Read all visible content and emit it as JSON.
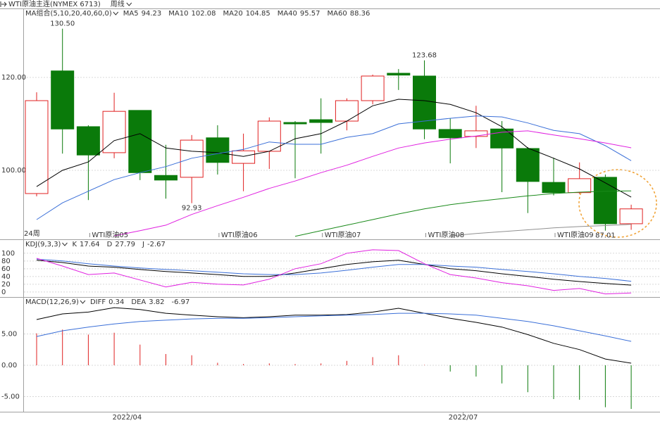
{
  "chart_data": [
    {
      "type": "candlestick",
      "title": "WTI原油主连(NYMEX 6713)",
      "period": "周线",
      "indicator": "MA组合(5,10,20,40,60,0)",
      "panel_note": "24周",
      "categories": [
        null,
        null,
        null,
        null,
        null,
        null,
        null,
        null,
        null,
        null,
        null,
        null,
        null,
        null,
        null,
        null,
        null,
        null,
        null,
        null,
        null,
        null,
        null,
        null
      ],
      "open": [
        95.0,
        121.4,
        109.4,
        103.8,
        112.9,
        98.9,
        98.5,
        107.0,
        101.5,
        104.1,
        110.3,
        110.9,
        110.6,
        115.0,
        120.9,
        120.3,
        108.8,
        107.3,
        108.9,
        104.7,
        97.4,
        95.2,
        98.5,
        88.5
      ],
      "high": [
        116.8,
        130.5,
        109.7,
        116.7,
        112.9,
        105.5,
        107.6,
        109.7,
        107.9,
        111.4,
        110.6,
        115.5,
        115.5,
        120.6,
        121.8,
        123.68,
        111.2,
        113.9,
        110.6,
        105.0,
        102.7,
        101.7,
        99.1,
        92.6
      ],
      "low": [
        94.4,
        103.6,
        93.6,
        102.6,
        97.9,
        93.9,
        92.93,
        99.1,
        95.5,
        100.3,
        98.3,
        103.6,
        108.6,
        114.2,
        117.3,
        106.7,
        101.5,
        104.8,
        95.3,
        90.8,
        94.6,
        94.9,
        87.01,
        87.2
      ],
      "close": [
        115.0,
        108.9,
        103.3,
        112.7,
        99.5,
        97.9,
        106.5,
        101.7,
        104.2,
        110.6,
        110.0,
        110.3,
        115.0,
        120.3,
        120.5,
        108.9,
        107.0,
        108.5,
        104.8,
        97.6,
        95.2,
        98.2,
        88.5,
        91.7
      ],
      "up_color": "#e02020",
      "down_color": "#0a7a0a",
      "series": [
        {
          "name": "MA5",
          "color": "#000000",
          "values": [
            96.5,
            100,
            101.8,
            106.4,
            107.9,
            104.8,
            104.1,
            103.8,
            103.0,
            104.1,
            106.8,
            107.9,
            110.6,
            113.9,
            115.3,
            115.0,
            114.2,
            112.4,
            109.4,
            104.8,
            102.6,
            100.3,
            97.3,
            94.23
          ]
        },
        {
          "name": "MA10",
          "color": "#3a6fd8",
          "values": [
            89.4,
            93.0,
            95.5,
            98.0,
            99.5,
            100.8,
            102.6,
            103.6,
            104.5,
            106.1,
            105.6,
            105.6,
            107.1,
            107.9,
            110.0,
            110.6,
            111.2,
            111.7,
            111.5,
            110.2,
            108.6,
            107.9,
            105.3,
            102.08
          ]
        },
        {
          "name": "MA20",
          "color": "#e020e0",
          "values": [
            null,
            null,
            null,
            85.9,
            87.0,
            88.2,
            90.5,
            92.4,
            94.2,
            96.1,
            97.7,
            99.5,
            101.1,
            103.0,
            104.8,
            105.9,
            106.7,
            107.4,
            108.2,
            108.5,
            107.6,
            106.8,
            105.9,
            104.85
          ]
        },
        {
          "name": "MA40",
          "color": "#1a8a1a",
          "values": [
            null,
            null,
            null,
            null,
            null,
            null,
            null,
            null,
            null,
            null,
            85.8,
            87.0,
            88.2,
            89.4,
            90.6,
            91.7,
            92.6,
            93.3,
            93.9,
            94.5,
            95.0,
            95.3,
            95.5,
            95.57
          ]
        },
        {
          "name": "MA60",
          "color": "#909090",
          "values": [
            null,
            null,
            null,
            null,
            null,
            null,
            null,
            null,
            null,
            null,
            null,
            null,
            null,
            null,
            null,
            null,
            85.9,
            86.4,
            86.8,
            87.2,
            87.6,
            87.9,
            88.1,
            88.36
          ]
        }
      ],
      "high_labels": [
        {
          "index": 1,
          "text": "130.50"
        },
        {
          "index": 15,
          "text": "123.68"
        }
      ],
      "low_labels": [
        {
          "index": 6,
          "text": "92.93"
        },
        {
          "index": 22,
          "text": "87.01"
        }
      ],
      "contract_labels": [
        {
          "index": 2,
          "text": "WTI原油05"
        },
        {
          "index": 7,
          "text": "WTI原油06"
        },
        {
          "index": 11,
          "text": "WTI原油07"
        },
        {
          "index": 15,
          "text": "WTI原油08"
        },
        {
          "index": 20,
          "text": "WTI原油09"
        }
      ],
      "ylim": [
        85.15,
        134.85
      ],
      "yticks": [
        {
          "value": 100,
          "label": "100.00"
        },
        {
          "value": 120,
          "label": "120.00"
        }
      ]
    },
    {
      "type": "line",
      "indicator": "KDJ(9,3,3)",
      "series": [
        {
          "name": "K",
          "color": "#000000",
          "values": [
            81.8,
            76,
            67,
            64,
            58,
            53,
            49,
            45,
            40,
            40,
            49,
            60,
            71,
            78,
            82,
            71,
            60,
            55,
            47,
            40,
            33,
            27,
            22,
            17.64
          ]
        },
        {
          "name": "D",
          "color": "#3a6fd8",
          "values": [
            85,
            80,
            73,
            67,
            62,
            58,
            55,
            51,
            47,
            45,
            45,
            49,
            56,
            64,
            71,
            71,
            67,
            64,
            58,
            53,
            47,
            40,
            35,
            27.79
          ]
        },
        {
          "name": "J",
          "color": "#e020e0",
          "values": [
            87,
            67,
            45,
            49,
            31,
            13,
            25,
            20,
            18,
            33,
            60,
            73,
            100,
            109,
            107,
            73,
            45,
            36,
            24,
            16,
            4,
            9,
            -5,
            -2.67
          ]
        }
      ],
      "ylim": [
        -13,
        136
      ],
      "yticks": [
        0,
        20,
        40,
        60,
        80,
        100
      ]
    },
    {
      "type": "macd",
      "indicator": "MACD(12,26,9)",
      "series": [
        {
          "name": "DIFF",
          "color": "#000000",
          "values": [
            7.3,
            8.2,
            8.5,
            9.2,
            8.9,
            8.3,
            8.0,
            7.75,
            7.6,
            7.75,
            8.0,
            8.0,
            8.1,
            8.5,
            9.1,
            8.3,
            7.5,
            6.85,
            6.1,
            4.9,
            3.5,
            2.5,
            1.0,
            0.34
          ]
        },
        {
          "name": "DEA",
          "color": "#3a6fd8",
          "values": [
            4.6,
            5.5,
            6.1,
            6.6,
            7.0,
            7.2,
            7.4,
            7.5,
            7.5,
            7.6,
            7.75,
            7.9,
            8.0,
            8.1,
            8.3,
            8.3,
            8.2,
            8.0,
            7.5,
            7.0,
            6.3,
            5.5,
            4.7,
            3.82
          ]
        }
      ],
      "histogram": {
        "pos_color": "#e02020",
        "neg_color": "#0a7a0a",
        "values": [
          5.1,
          5.7,
          4.9,
          5.2,
          3.3,
          1.8,
          1.6,
          0.4,
          0.2,
          0.3,
          0.2,
          0.3,
          0.7,
          1.3,
          1.6,
          0.05,
          -1.0,
          -1.8,
          -2.9,
          -4.3,
          -5.4,
          -5.5,
          -6.7,
          -6.97
        ]
      },
      "ylim": [
        -7.42,
        10.9
      ],
      "yticks": [
        {
          "value": -5,
          "label": "-5.00"
        },
        {
          "value": 0,
          "label": "0.00"
        },
        {
          "value": 5,
          "label": "5.00"
        }
      ],
      "xticks": [
        {
          "value": 3.5,
          "label": "2022/04"
        },
        {
          "value": 16.5,
          "label": "2022/07"
        }
      ]
    }
  ]
}
